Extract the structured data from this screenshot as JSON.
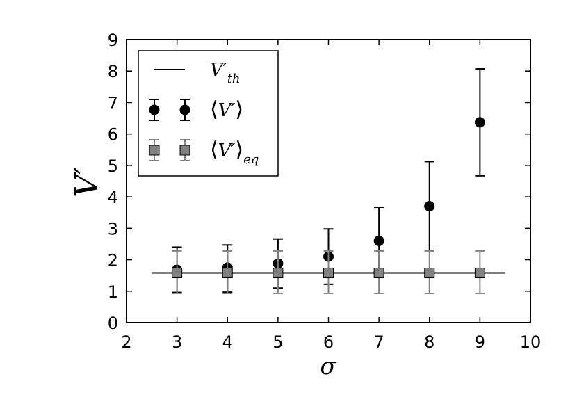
{
  "chart_data": {
    "type": "scatter",
    "title": "",
    "xlabel": "σ",
    "ylabel": "V′",
    "xlim": [
      2,
      10
    ],
    "ylim": [
      0,
      9
    ],
    "xticks": [
      "2",
      "3",
      "4",
      "5",
      "6",
      "7",
      "8",
      "9",
      "10"
    ],
    "yticks": [
      "0",
      "1",
      "2",
      "3",
      "4",
      "5",
      "6",
      "7",
      "8",
      "9"
    ],
    "grid": false,
    "legend_position": "top-left",
    "series": [
      {
        "name": "V′_th",
        "kind": "line",
        "color": "#000000",
        "x": [
          2.5,
          9.5
        ],
        "y": [
          1.58,
          1.58
        ]
      },
      {
        "name": "⟨V′⟩",
        "kind": "errorbar",
        "marker": "circle",
        "color": "#000000",
        "x": [
          3,
          4,
          5,
          6,
          7,
          8,
          9
        ],
        "y": [
          1.68,
          1.75,
          1.88,
          2.1,
          2.6,
          3.7,
          6.37
        ],
        "err_low": [
          0.72,
          0.78,
          0.78,
          0.88,
          1.0,
          1.4,
          1.7
        ],
        "err_high": [
          0.72,
          0.72,
          0.78,
          0.88,
          1.07,
          1.42,
          1.7
        ]
      },
      {
        "name": "⟨V′⟩_eq",
        "kind": "errorbar",
        "marker": "square",
        "color": "#808080",
        "x": [
          3,
          4,
          5,
          6,
          7,
          8,
          9
        ],
        "y": [
          1.58,
          1.58,
          1.58,
          1.58,
          1.58,
          1.58,
          1.58
        ],
        "err_low": [
          0.65,
          0.65,
          0.65,
          0.65,
          0.65,
          0.65,
          0.65
        ],
        "err_high": [
          0.7,
          0.7,
          0.7,
          0.7,
          0.7,
          0.7,
          0.7
        ]
      }
    ],
    "legend": [
      {
        "main": "V′",
        "sub": "th",
        "angle": false
      },
      {
        "main": "V′",
        "sub": "",
        "angle": true
      },
      {
        "main": "V′",
        "sub": "eq",
        "angle": true
      }
    ]
  }
}
